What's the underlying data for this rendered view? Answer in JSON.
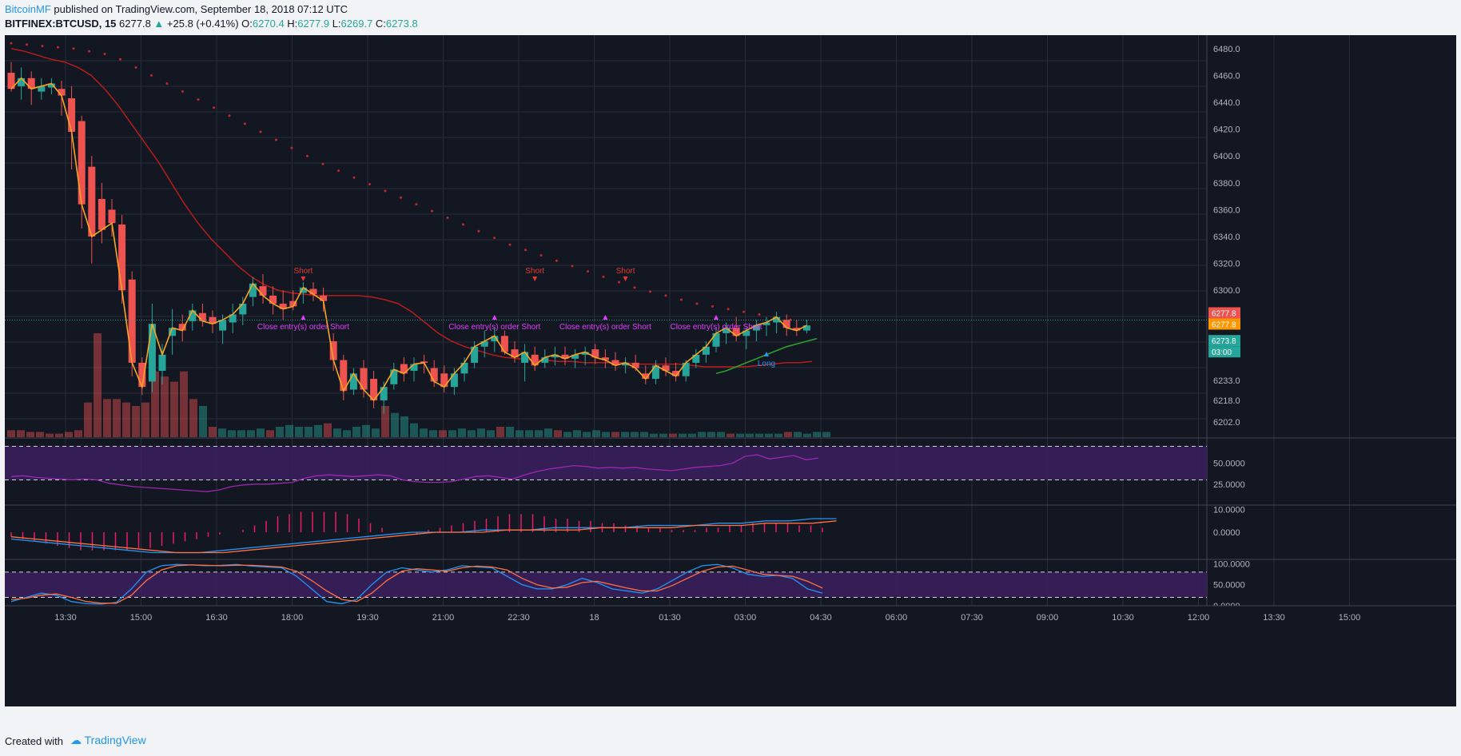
{
  "header": {
    "author": "BitcoinMF",
    "published_text": "published on TradingView.com, September 18, 2018 07:12 UTC",
    "symbol": "BITFINEX:BTCUSD, 15",
    "last": "6277.8",
    "change": "+25.8 (+0.41%)",
    "o_label": "O:",
    "o_value": "6270.4",
    "h_label": "H:",
    "h_value": "6277.9",
    "l_label": "L:",
    "l_value": "6269.7",
    "c_label": "C:",
    "c_value": "6273.8"
  },
  "footer": {
    "created_with": "Created with",
    "brand": "TradingView"
  },
  "colors": {
    "background": "#131722",
    "grid": "#2a2e39",
    "up": "#26a69a",
    "down": "#ef5350",
    "sar": "#c62828",
    "ema": "#b71c1c",
    "zigzag": "#f5a623",
    "long_ma": "#2e9e2e",
    "rsi": "#9c27b0",
    "band": "#3a1f5c",
    "macd": "#2196f3",
    "signal": "#ff7043",
    "hist": "#e91e63",
    "price_line": "#26a69a",
    "stoch_k": "#2196f3",
    "stoch_d": "#ff7043",
    "signal_short": "#e53935",
    "signal_close": "#e040fb",
    "signal_long": "#2196f3"
  },
  "chart_data": [
    {
      "type": "candlestick",
      "title": "BITFINEX:BTCUSD, 15",
      "y_tick_labels": [
        "6480.0",
        "6460.0",
        "6440.0",
        "6420.0",
        "6400.0",
        "6380.0",
        "6360.0",
        "6340.0",
        "6320.0",
        "6300.0",
        "6233.0",
        "6218.0",
        "6202.0"
      ],
      "x_tick_labels": [
        "13:30",
        "15:00",
        "16:30",
        "18:00",
        "19:30",
        "21:00",
        "22:30",
        "18",
        "01:30",
        "03:00",
        "04:30",
        "06:00",
        "07:30",
        "09:00",
        "10:30",
        "12:00",
        "13:30",
        "15:00"
      ],
      "price_labels": [
        "6277.8",
        "6277.8",
        "6273.8",
        "03:00"
      ],
      "candles": [
        [
          6462,
          6470,
          6448,
          6450
        ],
        [
          6452,
          6466,
          6442,
          6458
        ],
        [
          6458,
          6463,
          6438,
          6450
        ],
        [
          6448,
          6458,
          6442,
          6452
        ],
        [
          6451,
          6458,
          6446,
          6454
        ],
        [
          6450,
          6456,
          6430,
          6445
        ],
        [
          6443,
          6452,
          6390,
          6418
        ],
        [
          6426,
          6430,
          6346,
          6364
        ],
        [
          6392,
          6400,
          6320,
          6340
        ],
        [
          6368,
          6380,
          6335,
          6345
        ],
        [
          6360,
          6368,
          6340,
          6350
        ],
        [
          6349,
          6356,
          6290,
          6300
        ],
        [
          6308,
          6314,
          6236,
          6246
        ],
        [
          6246,
          6250,
          6222,
          6228
        ],
        [
          6232,
          6290,
          6224,
          6275
        ],
        [
          6240,
          6260,
          6230,
          6252
        ],
        [
          6266,
          6286,
          6252,
          6272
        ],
        [
          6275,
          6282,
          6262,
          6270
        ],
        [
          6277,
          6290,
          6270,
          6285
        ],
        [
          6283,
          6290,
          6273,
          6277
        ],
        [
          6280,
          6285,
          6268,
          6275
        ],
        [
          6270,
          6282,
          6260,
          6278
        ],
        [
          6276,
          6290,
          6268,
          6282
        ],
        [
          6282,
          6295,
          6274,
          6290
        ],
        [
          6295,
          6310,
          6288,
          6305
        ],
        [
          6303,
          6312,
          6290,
          6296
        ],
        [
          6296,
          6303,
          6282,
          6290
        ],
        [
          6290,
          6300,
          6278,
          6286
        ],
        [
          6292,
          6300,
          6285,
          6288
        ],
        [
          6298,
          6306,
          6290,
          6302
        ],
        [
          6301,
          6306,
          6292,
          6297
        ],
        [
          6296,
          6302,
          6284,
          6292
        ],
        [
          6262,
          6268,
          6240,
          6248
        ],
        [
          6248,
          6252,
          6218,
          6225
        ],
        [
          6226,
          6242,
          6222,
          6238
        ],
        [
          6242,
          6248,
          6220,
          6226
        ],
        [
          6234,
          6240,
          6212,
          6218
        ],
        [
          6218,
          6232,
          6208,
          6228
        ],
        [
          6230,
          6246,
          6226,
          6241
        ],
        [
          6245,
          6250,
          6232,
          6238
        ],
        [
          6240,
          6250,
          6232,
          6245
        ],
        [
          6247,
          6252,
          6238,
          6246
        ],
        [
          6242,
          6248,
          6228,
          6232
        ],
        [
          6238,
          6244,
          6224,
          6228
        ],
        [
          6228,
          6242,
          6222,
          6238
        ],
        [
          6238,
          6250,
          6232,
          6246
        ],
        [
          6246,
          6262,
          6242,
          6258
        ],
        [
          6258,
          6270,
          6250,
          6262
        ],
        [
          6262,
          6272,
          6254,
          6266
        ],
        [
          6266,
          6270,
          6252,
          6254
        ],
        [
          6256,
          6262,
          6246,
          6250
        ],
        [
          6246,
          6260,
          6232,
          6254
        ],
        [
          6252,
          6258,
          6240,
          6244
        ],
        [
          6246,
          6256,
          6242,
          6250
        ],
        [
          6250,
          6258,
          6244,
          6252
        ],
        [
          6252,
          6258,
          6244,
          6249
        ],
        [
          6249,
          6256,
          6242,
          6252
        ],
        [
          6252,
          6258,
          6244,
          6254
        ],
        [
          6256,
          6260,
          6245,
          6250
        ],
        [
          6250,
          6256,
          6242,
          6248
        ],
        [
          6248,
          6254,
          6240,
          6244
        ],
        [
          6244,
          6250,
          6238,
          6246
        ],
        [
          6246,
          6252,
          6240,
          6242
        ],
        [
          6238,
          6244,
          6230,
          6234
        ],
        [
          6234,
          6248,
          6230,
          6244
        ],
        [
          6244,
          6250,
          6236,
          6240
        ],
        [
          6240,
          6246,
          6232,
          6236
        ],
        [
          6236,
          6248,
          6232,
          6246
        ],
        [
          6246,
          6256,
          6242,
          6252
        ],
        [
          6252,
          6262,
          6246,
          6258
        ],
        [
          6258,
          6272,
          6254,
          6268
        ],
        [
          6268,
          6276,
          6260,
          6272
        ],
        [
          6272,
          6280,
          6262,
          6266
        ],
        [
          6266,
          6272,
          6256,
          6270
        ],
        [
          6270,
          6278,
          6262,
          6274
        ],
        [
          6274,
          6280,
          6266,
          6276
        ],
        [
          6276,
          6284,
          6268,
          6280
        ],
        [
          6278,
          6282,
          6266,
          6272
        ],
        [
          6272,
          6278,
          6266,
          6270
        ],
        [
          6270,
          6278,
          6268,
          6273.8
        ]
      ],
      "sar": [
        6484,
        6483,
        6482,
        6481,
        6480,
        6478,
        6476,
        6472,
        6466,
        6460,
        6454,
        6448,
        6442,
        6436,
        6430,
        6424,
        6418,
        6412,
        6406,
        6400,
        6394,
        6389,
        6384,
        6379,
        6374,
        6369,
        6364,
        6359,
        6354,
        6349,
        6344,
        6339,
        6334,
        6330,
        6326,
        6322,
        6318,
        6314,
        6310,
        6306,
        6302,
        6299,
        6296,
        6293,
        6290,
        6288,
        6286,
        6284,
        6282,
        6280,
        6278
      ],
      "ema": [
        6480,
        6478,
        6475,
        6472,
        6470,
        6466,
        6460,
        6450,
        6438,
        6424,
        6410,
        6396,
        6380,
        6364,
        6350,
        6338,
        6328,
        6318,
        6310,
        6304,
        6300,
        6298,
        6297,
        6296,
        6296,
        6296,
        6296,
        6295,
        6293,
        6290,
        6284,
        6276,
        6268,
        6262,
        6258,
        6255,
        6252,
        6250,
        6249,
        6248,
        6248,
        6247,
        6247,
        6246,
        6246,
        6246,
        6246,
        6245,
        6245,
        6245,
        6245,
        6244,
        6243,
        6243,
        6243,
        6243,
        6244,
        6245,
        6246,
        6246,
        6247
      ],
      "long_ma": [
        6238,
        6240,
        6243,
        6246,
        6249,
        6252,
        6255,
        6258,
        6260,
        6262,
        6264
      ],
      "signals": [
        "Short",
        "Close entry(s) order Short",
        "Short",
        "Close entry(s) order Short",
        "Short",
        "Close entry(s) order Short",
        "Close entry(s) order Short",
        "Long"
      ],
      "volume": [
        4,
        4,
        3,
        3,
        2,
        2,
        3,
        4,
        20,
        60,
        22,
        22,
        20,
        18,
        20,
        38,
        35,
        32,
        38,
        22,
        18,
        6,
        5,
        4,
        4,
        4,
        5,
        4,
        6,
        7,
        6,
        6,
        7,
        8,
        5,
        4,
        6,
        7,
        5,
        18,
        14,
        12,
        8,
        5,
        4,
        4,
        4,
        5,
        4,
        5,
        4,
        6,
        6,
        4,
        4,
        4,
        5,
        4,
        3,
        4,
        3,
        4,
        3,
        3,
        3,
        3,
        3,
        2,
        2,
        2,
        2,
        2,
        3,
        3,
        3,
        2,
        2,
        2,
        2,
        2,
        2,
        3,
        3,
        2,
        3,
        3,
        3
      ]
    },
    {
      "type": "line",
      "title": "RSI",
      "y_tick_labels": [
        "50.0000",
        "25.0000"
      ],
      "values": [
        34,
        35,
        33,
        32,
        31,
        30,
        31,
        30,
        26,
        24,
        22,
        21,
        20,
        19,
        18,
        17,
        16,
        18,
        22,
        24,
        25,
        25,
        26,
        27,
        32,
        35,
        36,
        35,
        34,
        35,
        36,
        35,
        30,
        28,
        27,
        27,
        28,
        31,
        34,
        35,
        33,
        31,
        36,
        40,
        43,
        45,
        47,
        46,
        44,
        45,
        44,
        45,
        43,
        42,
        41,
        43,
        45,
        46,
        47,
        50,
        58,
        60,
        55,
        57,
        59,
        54,
        56
      ],
      "ylim": [
        0,
        80
      ]
    },
    {
      "type": "histogram",
      "title": "MACD",
      "y_tick_labels": [
        "10.0000",
        "0.0000"
      ],
      "hist": [
        -2,
        -3,
        -4,
        -5,
        -6,
        -7,
        -8,
        -8,
        -8,
        -8,
        -8,
        -7,
        -7,
        -6,
        -5,
        -4,
        -3,
        -2,
        -1,
        0,
        1,
        3,
        5,
        7,
        8,
        9,
        9,
        9,
        9,
        8,
        6,
        4,
        2,
        0,
        0,
        -1,
        1,
        2,
        3,
        4,
        5,
        6,
        7,
        8,
        8,
        8,
        7,
        6,
        6,
        5,
        5,
        4,
        4,
        3,
        3,
        2,
        2,
        1,
        1,
        1,
        2,
        2,
        3,
        3,
        4,
        4,
        4,
        4,
        3,
        3,
        2
      ],
      "macd": [
        -3,
        -4,
        -5,
        -6,
        -7,
        -8,
        -9,
        -9,
        -9,
        -8,
        -7,
        -6,
        -5,
        -4,
        -3,
        -2,
        -1,
        0,
        0,
        0,
        1,
        1,
        1,
        2,
        2,
        2,
        2,
        3,
        3,
        3,
        4,
        4,
        5,
        5,
        6,
        6
      ],
      "signal_line": [
        -2,
        -3,
        -4,
        -5,
        -6,
        -7,
        -8,
        -9,
        -9,
        -9,
        -8,
        -7,
        -6,
        -5,
        -4,
        -3,
        -2,
        -1,
        0,
        0,
        0,
        1,
        1,
        1,
        1,
        2,
        2,
        2,
        2,
        3,
        3,
        3,
        4,
        4,
        4,
        5
      ],
      "ylim": [
        -12,
        12
      ]
    },
    {
      "type": "line",
      "title": "Stoch",
      "y_tick_labels": [
        "100.0000",
        "50.0000",
        "0.0000"
      ],
      "k": [
        10,
        20,
        30,
        25,
        10,
        5,
        4,
        8,
        40,
        80,
        95,
        98,
        97,
        95,
        96,
        98,
        94,
        92,
        90,
        70,
        40,
        10,
        5,
        15,
        50,
        80,
        90,
        85,
        80,
        85,
        95,
        92,
        90,
        70,
        50,
        40,
        40,
        50,
        65,
        55,
        40,
        35,
        30,
        40,
        60,
        80,
        95,
        98,
        90,
        75,
        70,
        72,
        65,
        40,
        30
      ],
      "d": [
        15,
        18,
        25,
        28,
        20,
        10,
        6,
        6,
        25,
        60,
        85,
        95,
        97,
        96,
        95,
        96,
        96,
        94,
        92,
        82,
        60,
        35,
        15,
        10,
        30,
        60,
        82,
        88,
        85,
        82,
        90,
        94,
        92,
        85,
        65,
        50,
        42,
        44,
        55,
        58,
        50,
        42,
        35,
        35,
        48,
        65,
        82,
        92,
        94,
        85,
        75,
        72,
        70,
        58,
        42
      ],
      "ylim": [
        0,
        110
      ]
    }
  ]
}
